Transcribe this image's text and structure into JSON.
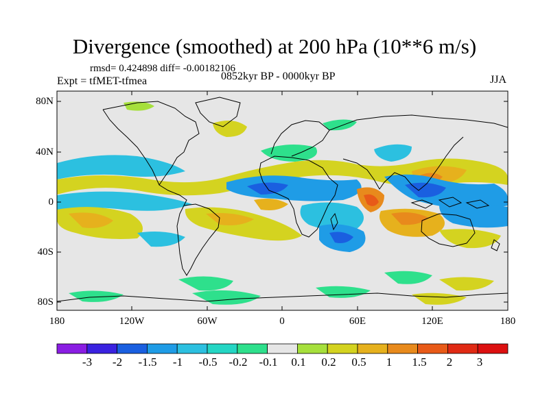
{
  "title": "Divergence (smoothed) at 200 hPa (10**6 m/s)",
  "stats": "rmsd= 0.424898 diff= -0.00182106",
  "experiment": "Expt = tfMET-tfmea",
  "period": "0852kyr BP - 0000kyr BP",
  "season": "JJA",
  "lat_labels": [
    "80N",
    "40N",
    "0",
    "40S",
    "80S"
  ],
  "lon_labels": [
    "180",
    "120W",
    "60W",
    "0",
    "60E",
    "120E",
    "180"
  ],
  "colorbar": {
    "labels": [
      "-3",
      "-2",
      "-1.5",
      "-1",
      "-0.5",
      "-0.2",
      "-0.1",
      "0.1",
      "0.2",
      "0.5",
      "1",
      "1.5",
      "2",
      "3"
    ],
    "colors": [
      "#8a1de3",
      "#3a22e0",
      "#1a5fe0",
      "#1f9ce6",
      "#2cc0e0",
      "#24d6c4",
      "#2ee08c",
      "#e6e6e6",
      "#a6e03c",
      "#d4d320",
      "#e6b11d",
      "#e88a1c",
      "#e85a18",
      "#e02a14",
      "#dc1010"
    ]
  },
  "colors": {
    "background": "#e6e6e6",
    "coast": "#000000"
  }
}
